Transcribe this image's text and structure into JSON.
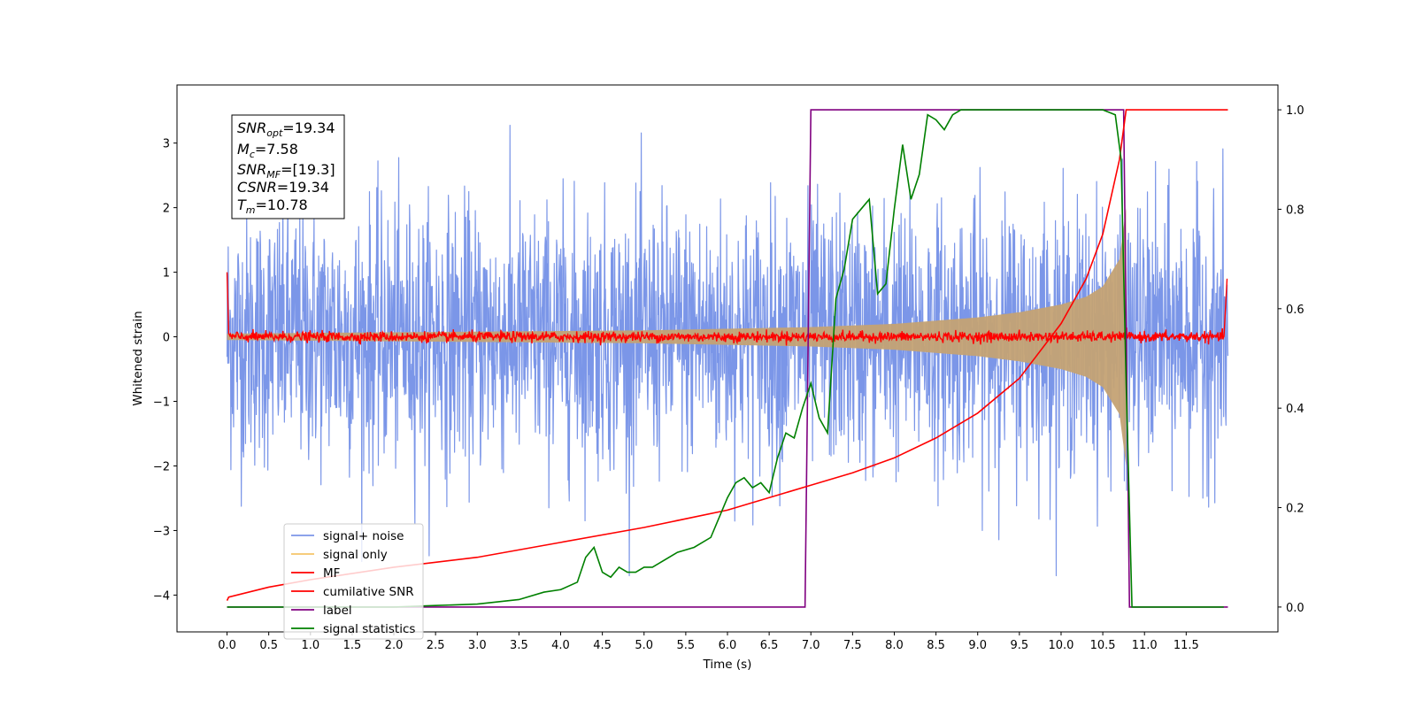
{
  "chart_data": {
    "type": "line",
    "xlabel": "Time (s)",
    "ylabel": "Whitened strain",
    "xlim": [
      -0.6,
      12.6
    ],
    "ylim": [
      -4.57,
      3.9
    ],
    "y2lim": [
      -0.05,
      1.05
    ],
    "xticks": [
      "0.0",
      "0.5",
      "1.0",
      "1.5",
      "2.0",
      "2.5",
      "3.0",
      "3.5",
      "4.0",
      "4.5",
      "5.0",
      "5.5",
      "6.0",
      "6.5",
      "7.0",
      "7.5",
      "8.0",
      "8.5",
      "9.0",
      "9.5",
      "10.0",
      "10.5",
      "11.0",
      "11.5"
    ],
    "yticks": [
      "3",
      "2",
      "1",
      "0",
      "−1",
      "−2",
      "−3",
      "−4"
    ],
    "y2ticks": [
      "0.0",
      "0.2",
      "0.4",
      "0.6",
      "0.8",
      "1.0"
    ],
    "grid": false,
    "legend_position": "lower-left",
    "colors": {
      "signal_noise": "#7b96e8",
      "signal_only": "#f5c46a",
      "mf": "#ff0000",
      "cumulative_snr": "#ff0000",
      "label": "#800080",
      "signal_statistics": "#008000"
    },
    "stats_box": {
      "snr_opt": "19.34",
      "mc": "7.58",
      "snr_mf": "[19.3]",
      "csnr": "19.34",
      "tm": "10.78"
    },
    "series": [
      {
        "name": "signal+ noise",
        "axis": "left",
        "description": "whitened noise band, approx. -2.5..2.5 with peaks to ±3.6",
        "x_range": [
          0.0,
          12.0
        ],
        "envelope_std": 1.0
      },
      {
        "name": "signal only",
        "axis": "left",
        "chirp_envelope": [
          [
            0.0,
            0.05
          ],
          [
            3.0,
            0.08
          ],
          [
            5.0,
            0.1
          ],
          [
            7.0,
            0.15
          ],
          [
            8.0,
            0.2
          ],
          [
            9.0,
            0.3
          ],
          [
            9.5,
            0.38
          ],
          [
            10.0,
            0.5
          ],
          [
            10.3,
            0.62
          ],
          [
            10.5,
            0.78
          ],
          [
            10.7,
            1.2
          ],
          [
            10.78,
            2.0
          ]
        ]
      },
      {
        "name": "MF",
        "axis": "left",
        "description": "noise around 0 with spikes at edges",
        "start_value": 1.0,
        "end_value": 0.9
      },
      {
        "name": "cumilative SNR",
        "axis": "right",
        "x": [
          0.0,
          0.02,
          0.5,
          1,
          2,
          3,
          4,
          5,
          6,
          7,
          7.5,
          8,
          8.5,
          9,
          9.5,
          10,
          10.3,
          10.5,
          10.7,
          10.78,
          10.8,
          12.0
        ],
        "y": [
          0.013,
          0.02,
          0.04,
          0.055,
          0.08,
          0.1,
          0.13,
          0.16,
          0.195,
          0.245,
          0.27,
          0.3,
          0.34,
          0.39,
          0.46,
          0.57,
          0.66,
          0.75,
          0.9,
          1.0,
          1.0,
          1.0
        ]
      },
      {
        "name": "label",
        "axis": "right",
        "x": [
          0.0,
          6.93,
          7.0,
          10.75,
          10.82,
          12.0
        ],
        "y": [
          0.0,
          0.0,
          1.0,
          1.0,
          0.0,
          0.0
        ]
      },
      {
        "name": "signal statistics",
        "axis": "right",
        "x": [
          0.0,
          0.5,
          1.0,
          1.5,
          2.0,
          2.5,
          3.0,
          3.5,
          3.8,
          4.0,
          4.2,
          4.3,
          4.4,
          4.5,
          4.6,
          4.7,
          4.8,
          4.9,
          5.0,
          5.1,
          5.2,
          5.4,
          5.6,
          5.8,
          5.9,
          6.0,
          6.1,
          6.2,
          6.3,
          6.4,
          6.5,
          6.6,
          6.7,
          6.8,
          6.9,
          7.0,
          7.1,
          7.2,
          7.3,
          7.4,
          7.5,
          7.6,
          7.7,
          7.8,
          7.9,
          8.0,
          8.1,
          8.2,
          8.3,
          8.4,
          8.5,
          8.6,
          8.7,
          8.8,
          9.0,
          9.5,
          10.0,
          10.5,
          10.65,
          10.72,
          10.78,
          10.85,
          11.0,
          11.5,
          11.95
        ],
        "y": [
          0.0,
          0.0,
          0.0,
          0.0,
          0.0,
          0.003,
          0.006,
          0.015,
          0.03,
          0.035,
          0.05,
          0.1,
          0.12,
          0.07,
          0.06,
          0.08,
          0.07,
          0.07,
          0.08,
          0.08,
          0.09,
          0.11,
          0.12,
          0.14,
          0.18,
          0.22,
          0.25,
          0.26,
          0.24,
          0.25,
          0.23,
          0.3,
          0.35,
          0.34,
          0.4,
          0.45,
          0.38,
          0.35,
          0.62,
          0.68,
          0.78,
          0.8,
          0.82,
          0.63,
          0.65,
          0.8,
          0.93,
          0.82,
          0.87,
          0.99,
          0.98,
          0.96,
          0.99,
          1.0,
          1.0,
          1.0,
          1.0,
          1.0,
          0.99,
          0.9,
          0.45,
          0.0,
          0.0,
          0.0,
          0.0
        ]
      }
    ]
  }
}
